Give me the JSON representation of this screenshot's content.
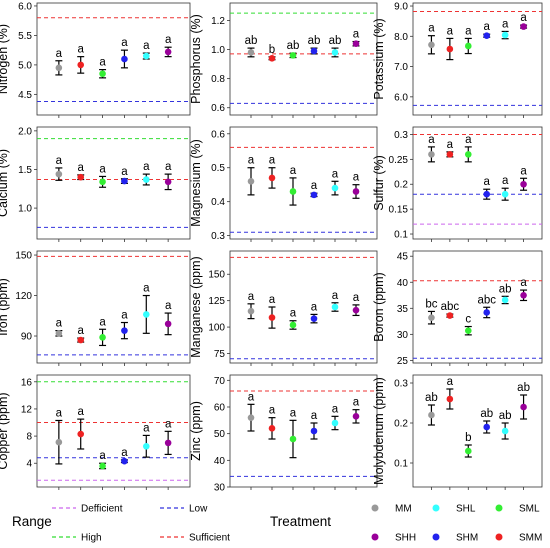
{
  "legend": {
    "range_title": "Range",
    "treatment_title": "Treatment",
    "range_items": [
      {
        "label": "Defficient",
        "color": "#cc66ee"
      },
      {
        "label": "Low",
        "color": "#3333dd"
      },
      {
        "label": "High",
        "color": "#33dd33"
      },
      {
        "label": "Sufficient",
        "color": "#ee3333"
      }
    ],
    "treatment_items": [
      {
        "label": "MM",
        "color": "#999999"
      },
      {
        "label": "SHL",
        "color": "#33ffff"
      },
      {
        "label": "SML",
        "color": "#33ee33"
      },
      {
        "label": "SHH",
        "color": "#990099"
      },
      {
        "label": "SHM",
        "color": "#2222ee"
      },
      {
        "label": "SMM",
        "color": "#ee2222"
      }
    ]
  },
  "chart_data": [
    {
      "type": "scatter",
      "ylabel": "Nitrogen (%)",
      "ylim": [
        4.15,
        6.05
      ],
      "yticks": [
        4.0,
        4.5,
        5.0,
        5.5,
        6.0
      ],
      "tick_labels": [
        "4.0",
        "4.5",
        "5.0",
        "5.5",
        "6.0"
      ],
      "treatments": [
        "MM",
        "SMM",
        "SML",
        "SHM",
        "SHL",
        "SHH"
      ],
      "means": [
        4.95,
        5.0,
        4.85,
        5.1,
        5.15,
        5.22
      ],
      "errors": [
        0.12,
        0.14,
        0.07,
        0.15,
        0.05,
        0.08
      ],
      "labels": [
        "a",
        "a",
        "a",
        "a",
        "a",
        "a"
      ],
      "ranges": [
        {
          "type": "Sufficient",
          "value": 5.8
        },
        {
          "type": "Low",
          "value": 4.38
        }
      ]
    },
    {
      "type": "scatter",
      "ylabel": "Phosphorus (%)",
      "ylim": [
        0.55,
        1.32
      ],
      "yticks": [
        0.6,
        0.8,
        1.0,
        1.2
      ],
      "tick_labels": [
        "0.6",
        "0.8",
        "1.0",
        "1.2"
      ],
      "treatments": [
        "MM",
        "SMM",
        "SML",
        "SHM",
        "SHL",
        "SHH"
      ],
      "means": [
        0.98,
        0.94,
        0.96,
        0.99,
        0.98,
        1.04
      ],
      "errors": [
        0.03,
        0.01,
        0.015,
        0.02,
        0.03,
        0.015
      ],
      "labels": [
        "ab",
        "b",
        "ab",
        "ab",
        "ab",
        "a"
      ],
      "ranges": [
        {
          "type": "High",
          "value": 1.25
        },
        {
          "type": "Sufficient",
          "value": 0.97
        },
        {
          "type": "Low",
          "value": 0.63
        }
      ]
    },
    {
      "type": "scatter",
      "ylabel": "Potassium (%)",
      "ylim": [
        5.4,
        9.1
      ],
      "yticks": [
        6.0,
        7.0,
        8.0,
        9.0
      ],
      "tick_labels": [
        "6.0",
        "7.0",
        "8.0",
        "9.0"
      ],
      "treatments": [
        "MM",
        "SMM",
        "SML",
        "SHM",
        "SHL",
        "SHH"
      ],
      "means": [
        7.72,
        7.58,
        7.68,
        8.02,
        8.04,
        8.32
      ],
      "errors": [
        0.3,
        0.35,
        0.25,
        0.05,
        0.12,
        0.05
      ],
      "labels": [
        "a",
        "a",
        "a",
        "a",
        "a",
        "a"
      ],
      "ranges": [
        {
          "type": "Sufficient",
          "value": 8.82
        },
        {
          "type": "Low",
          "value": 5.72
        }
      ]
    },
    {
      "type": "scatter",
      "ylabel": "Calcium (%)",
      "ylim": [
        0.6,
        2.05
      ],
      "yticks": [
        1.0,
        1.5,
        2.0
      ],
      "tick_labels": [
        "1.0",
        "1.5",
        "2.0"
      ],
      "treatments": [
        "MM",
        "SMM",
        "SML",
        "SHM",
        "SHL",
        "SHH"
      ],
      "means": [
        1.44,
        1.4,
        1.34,
        1.35,
        1.37,
        1.34
      ],
      "errors": [
        0.08,
        0.03,
        0.07,
        0.03,
        0.07,
        0.1
      ],
      "labels": [
        "a",
        "a",
        "a",
        "a",
        "a",
        "a"
      ],
      "ranges": [
        {
          "type": "High",
          "value": 1.9
        },
        {
          "type": "Sufficient",
          "value": 1.37
        },
        {
          "type": "Low",
          "value": 0.75
        }
      ]
    },
    {
      "type": "scatter",
      "ylabel": "Magnesium (%)",
      "ylim": [
        0.29,
        0.62
      ],
      "yticks": [
        0.3,
        0.4,
        0.5,
        0.6
      ],
      "tick_labels": [
        "0.3",
        "0.4",
        "0.5",
        "0.6"
      ],
      "treatments": [
        "MM",
        "SMM",
        "SML",
        "SHM",
        "SHL",
        "SHH"
      ],
      "means": [
        0.46,
        0.47,
        0.43,
        0.42,
        0.44,
        0.43
      ],
      "errors": [
        0.04,
        0.03,
        0.04,
        0.005,
        0.02,
        0.02
      ],
      "labels": [
        "a",
        "a",
        "a",
        "a",
        "a",
        "a"
      ],
      "ranges": [
        {
          "type": "Sufficient",
          "value": 0.56
        },
        {
          "type": "Low",
          "value": 0.31
        }
      ]
    },
    {
      "type": "scatter",
      "ylabel": "Sulfur (%)",
      "ylim": [
        0.09,
        0.315
      ],
      "yticks": [
        0.1,
        0.15,
        0.2,
        0.25,
        0.3
      ],
      "tick_labels": [
        "0.1",
        "0.15",
        "0.2",
        "0.25",
        "0.3"
      ],
      "treatments": [
        "MM",
        "SMM",
        "SML",
        "SHM",
        "SHL",
        "SHH"
      ],
      "means": [
        0.26,
        0.26,
        0.26,
        0.18,
        0.18,
        0.2
      ],
      "errors": [
        0.015,
        0.005,
        0.015,
        0.01,
        0.012,
        0.012
      ],
      "labels": [
        "a",
        "a",
        "a",
        "a",
        "a",
        "a"
      ],
      "ranges": [
        {
          "type": "Sufficient",
          "value": 0.3
        },
        {
          "type": "Low",
          "value": 0.18
        },
        {
          "type": "Defficient",
          "value": 0.12
        }
      ]
    },
    {
      "type": "scatter",
      "ylabel": "Iron (ppm)",
      "ylim": [
        70,
        153
      ],
      "yticks": [
        90,
        120,
        150
      ],
      "tick_labels": [
        "90",
        "120",
        "150"
      ],
      "treatments": [
        "MM",
        "SMM",
        "SML",
        "SHM",
        "SHL",
        "SHH"
      ],
      "means": [
        92,
        87,
        89,
        94,
        106,
        99
      ],
      "errors": [
        2,
        1.5,
        6,
        6,
        14,
        8
      ],
      "labels": [
        "a",
        "a",
        "a",
        "a",
        "a",
        "a"
      ],
      "ranges": [
        {
          "type": "Sufficient",
          "value": 149
        },
        {
          "type": "Low",
          "value": 76
        }
      ]
    },
    {
      "type": "scatter",
      "ylabel": "Manganese (ppm)",
      "ylim": [
        66,
        172
      ],
      "yticks": [
        75,
        100,
        125,
        150
      ],
      "tick_labels": [
        "75",
        "100",
        "125",
        "150"
      ],
      "treatments": [
        "MM",
        "SMM",
        "SML",
        "SHM",
        "SHL",
        "SHH"
      ],
      "means": [
        115,
        109,
        102,
        108,
        119,
        116
      ],
      "errors": [
        7,
        10,
        4,
        4,
        4,
        5
      ],
      "labels": [
        "a",
        "a",
        "a",
        "a",
        "a",
        "a"
      ],
      "ranges": [
        {
          "type": "Sufficient",
          "value": 166
        },
        {
          "type": "Low",
          "value": 70
        }
      ]
    },
    {
      "type": "scatter",
      "ylabel": "Boron (ppm)",
      "ylim": [
        24.5,
        46
      ],
      "yticks": [
        25,
        30,
        35,
        40,
        45
      ],
      "tick_labels": [
        "25",
        "30",
        "35",
        "40",
        "45"
      ],
      "treatments": [
        "MM",
        "SMM",
        "SML",
        "SHM",
        "SHL",
        "SHH"
      ],
      "means": [
        33.2,
        33.6,
        30.7,
        34.2,
        36.6,
        37.5
      ],
      "errors": [
        1.2,
        0.3,
        0.8,
        1.0,
        0.7,
        1.0
      ],
      "labels": [
        "bc",
        "abc",
        "c",
        "abc",
        "ab",
        "a"
      ],
      "ranges": [
        {
          "type": "Sufficient",
          "value": 40.3
        },
        {
          "type": "Low",
          "value": 25.4
        }
      ]
    },
    {
      "type": "scatter",
      "ylabel": "Copper (ppm)",
      "ylim": [
        0.5,
        17
      ],
      "yticks": [
        4,
        8,
        12,
        16
      ],
      "tick_labels": [
        "4",
        "8",
        "12",
        "16"
      ],
      "treatments": [
        "MM",
        "SMM",
        "SML",
        "SHM",
        "SHL",
        "SHH"
      ],
      "means": [
        7.1,
        8.3,
        3.6,
        4.3,
        6.5,
        7.0
      ],
      "errors": [
        3.2,
        2.2,
        0.4,
        0.2,
        1.6,
        1.7
      ],
      "labels": [
        "a",
        "a",
        "a",
        "a",
        "a",
        "a"
      ],
      "ranges": [
        {
          "type": "High",
          "value": 16
        },
        {
          "type": "Sufficient",
          "value": 10
        },
        {
          "type": "Low",
          "value": 4.8
        },
        {
          "type": "Defficient",
          "value": 1.5
        }
      ]
    },
    {
      "type": "scatter",
      "ylabel": "Zinc (ppm)",
      "ylim": [
        30,
        72
      ],
      "yticks": [
        30,
        40,
        50,
        60,
        70
      ],
      "tick_labels": [
        "30",
        "40",
        "50",
        "60",
        "70"
      ],
      "treatments": [
        "MM",
        "SMM",
        "SML",
        "SHM",
        "SHL",
        "SHH"
      ],
      "means": [
        56,
        52,
        48,
        51,
        54,
        56.5
      ],
      "errors": [
        5,
        4,
        7,
        3,
        2.5,
        2.5
      ],
      "labels": [
        "a",
        "a",
        "a",
        "a",
        "a",
        "a"
      ],
      "ranges": [
        {
          "type": "Sufficient",
          "value": 66
        },
        {
          "type": "Low",
          "value": 34
        }
      ]
    },
    {
      "type": "scatter",
      "ylabel": "Molybdenum (ppm)",
      "ylim": [
        0.04,
        0.32
      ],
      "yticks": [
        0.1,
        0.2,
        0.3
      ],
      "tick_labels": [
        "0.1",
        "0.2",
        "0.3"
      ],
      "treatments": [
        "MM",
        "SMM",
        "SML",
        "SHM",
        "SHL",
        "SHH"
      ],
      "means": [
        0.22,
        0.26,
        0.13,
        0.19,
        0.18,
        0.24
      ],
      "errors": [
        0.025,
        0.025,
        0.015,
        0.015,
        0.02,
        0.03
      ],
      "labels": [
        "ab",
        "a",
        "b",
        "ab",
        "ab",
        "ab"
      ],
      "ranges": []
    }
  ]
}
